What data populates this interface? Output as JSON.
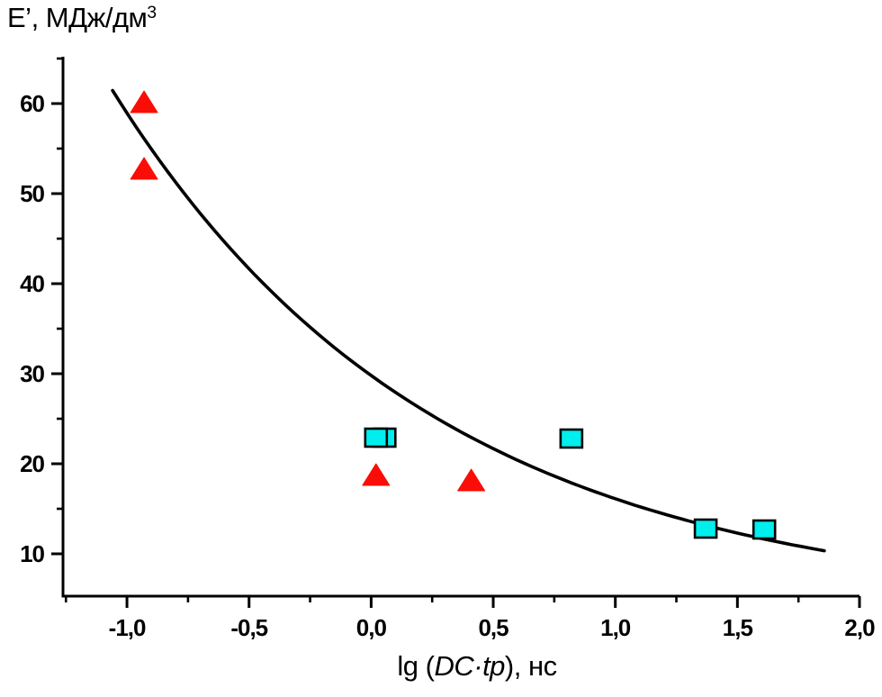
{
  "figure": {
    "background": "#ffffff",
    "axis_color": "#000000"
  },
  "chart_data": {
    "type": "scatter",
    "title": "",
    "ylabel": "E’, МДж/дм³",
    "ylabel_parts": {
      "main": "E’, МДж/дм",
      "sup": "3"
    },
    "xlabel": "lg (DC·tp), нс",
    "xlabel_parts": {
      "prefix": "lg (",
      "em": "DC·tp",
      "suffix": "), нс"
    },
    "x_range": [
      -1.262,
      2.0
    ],
    "y_range": [
      5.3,
      65.2
    ],
    "grid": false,
    "legend": null,
    "x_ticks": [
      {
        "v": -1.0,
        "label": "-1,0"
      },
      {
        "v": -0.5,
        "label": "-0,5"
      },
      {
        "v": 0.0,
        "label": "0,0"
      },
      {
        "v": 0.5,
        "label": "0,5"
      },
      {
        "v": 1.0,
        "label": "1,0"
      },
      {
        "v": 1.5,
        "label": "1,5"
      },
      {
        "v": 2.0,
        "label": "2,0"
      }
    ],
    "x_minor_ticks": [
      -1.25,
      -0.75,
      -0.25,
      0.25,
      0.75,
      1.25,
      1.75
    ],
    "y_ticks": [
      {
        "v": 10,
        "label": "10"
      },
      {
        "v": 20,
        "label": "20"
      },
      {
        "v": 30,
        "label": "30"
      },
      {
        "v": 40,
        "label": "40"
      },
      {
        "v": 50,
        "label": "50"
      },
      {
        "v": 60,
        "label": "60"
      }
    ],
    "y_minor_ticks": [
      15,
      25,
      35,
      45,
      55,
      65
    ],
    "series": [
      {
        "name": "triangles",
        "marker": "triangle",
        "fill": "#fa0d06",
        "stroke": "#fa0d06",
        "behind_curve": true,
        "points": [
          {
            "x": -0.93,
            "y": 60.2
          },
          {
            "x": -0.93,
            "y": 52.8
          },
          {
            "x": 0.02,
            "y": 18.8
          },
          {
            "x": 0.41,
            "y": 18.2
          }
        ]
      },
      {
        "name": "squares",
        "marker": "square",
        "fill": "#00eeee",
        "stroke": "#000000",
        "behind_curve": false,
        "points": [
          {
            "x": 0.055,
            "y": 22.9
          },
          {
            "x": 0.02,
            "y": 22.9
          },
          {
            "x": 0.82,
            "y": 22.8
          },
          {
            "x": 1.37,
            "y": 12.8
          },
          {
            "x": 1.61,
            "y": 12.7
          }
        ]
      }
    ],
    "fit_curve": {
      "type": "exponential",
      "formula": "E = c + a·exp(-k·x)",
      "c": 4.0,
      "a": 25.8,
      "k": 0.756,
      "x_start": -1.059,
      "x_end": 1.856,
      "color": "#000000"
    }
  }
}
